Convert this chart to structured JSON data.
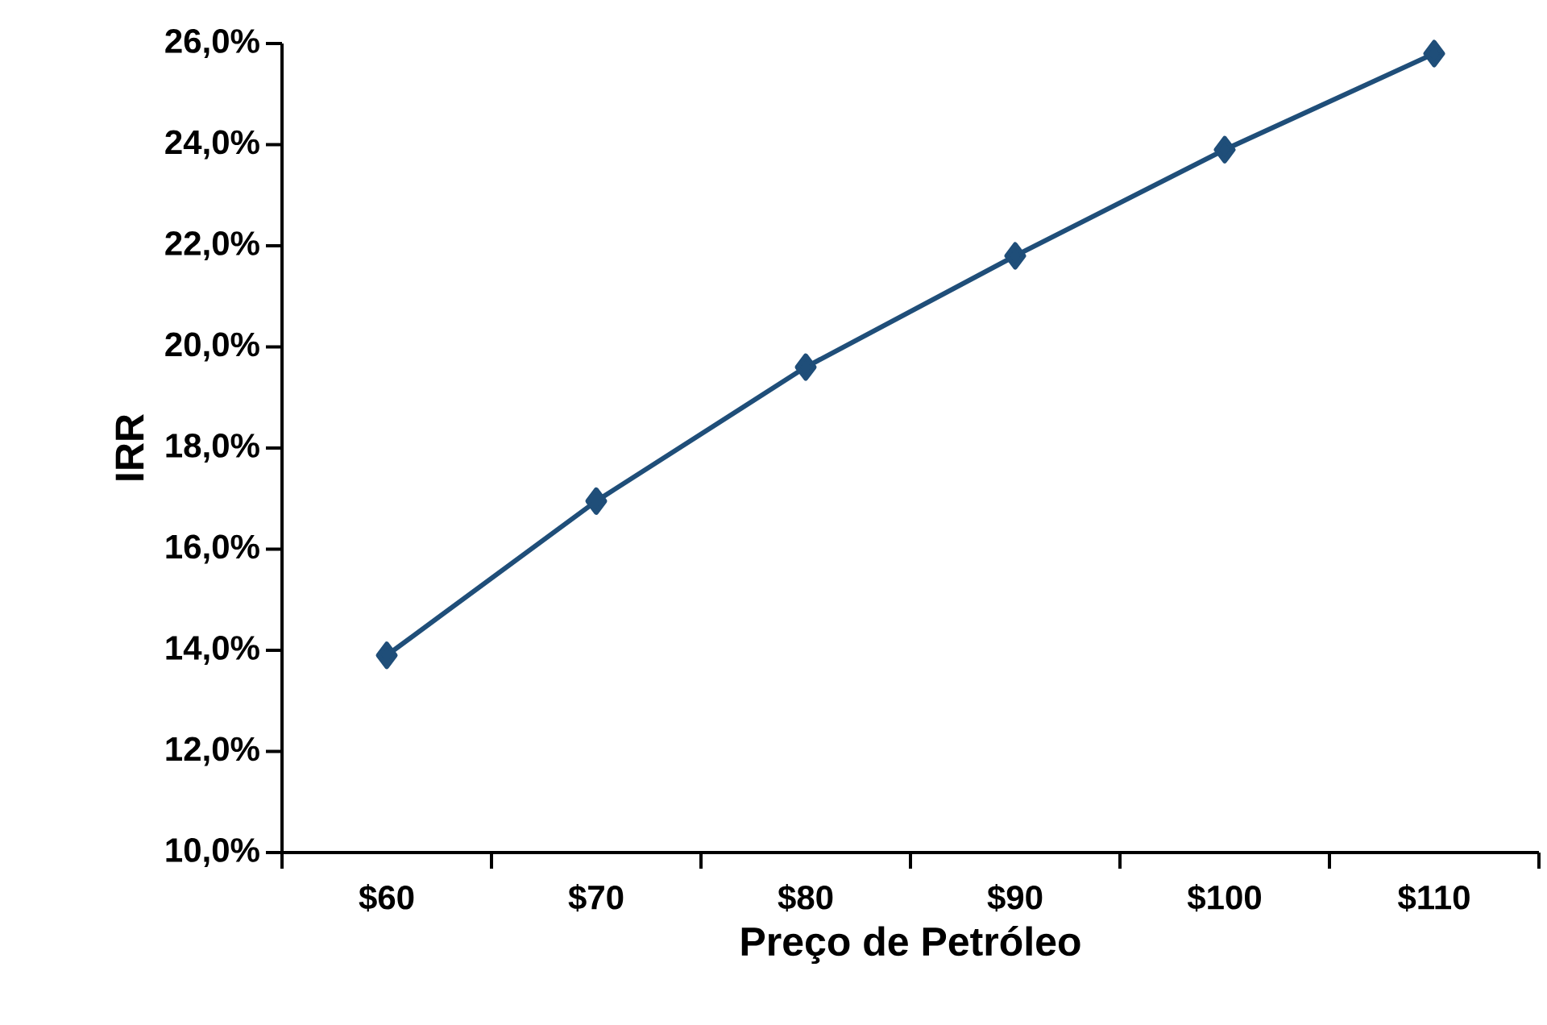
{
  "chart_data": {
    "type": "line",
    "xlabel": "Preço de Petróleo",
    "ylabel": "IRR",
    "categories": [
      "$60",
      "$70",
      "$80",
      "$90",
      "$100",
      "$110"
    ],
    "series": [
      {
        "color": "#1f4e79",
        "values": [
          13.9,
          16.95,
          19.6,
          21.8,
          23.9,
          25.8
        ]
      }
    ],
    "ylim": [
      10,
      26
    ],
    "yticks": [
      {
        "value": 10,
        "label": "10,0%"
      },
      {
        "value": 12,
        "label": "12,0%"
      },
      {
        "value": 14,
        "label": "14,0%"
      },
      {
        "value": 16,
        "label": "16,0%"
      },
      {
        "value": 18,
        "label": "18,0%"
      },
      {
        "value": 20,
        "label": "20,0%"
      },
      {
        "value": 22,
        "label": "22,0%"
      },
      {
        "value": 24,
        "label": "24,0%"
      },
      {
        "value": 26,
        "label": "26,0%"
      }
    ],
    "grid": false,
    "marker": "diamond",
    "line_style": "solid"
  }
}
